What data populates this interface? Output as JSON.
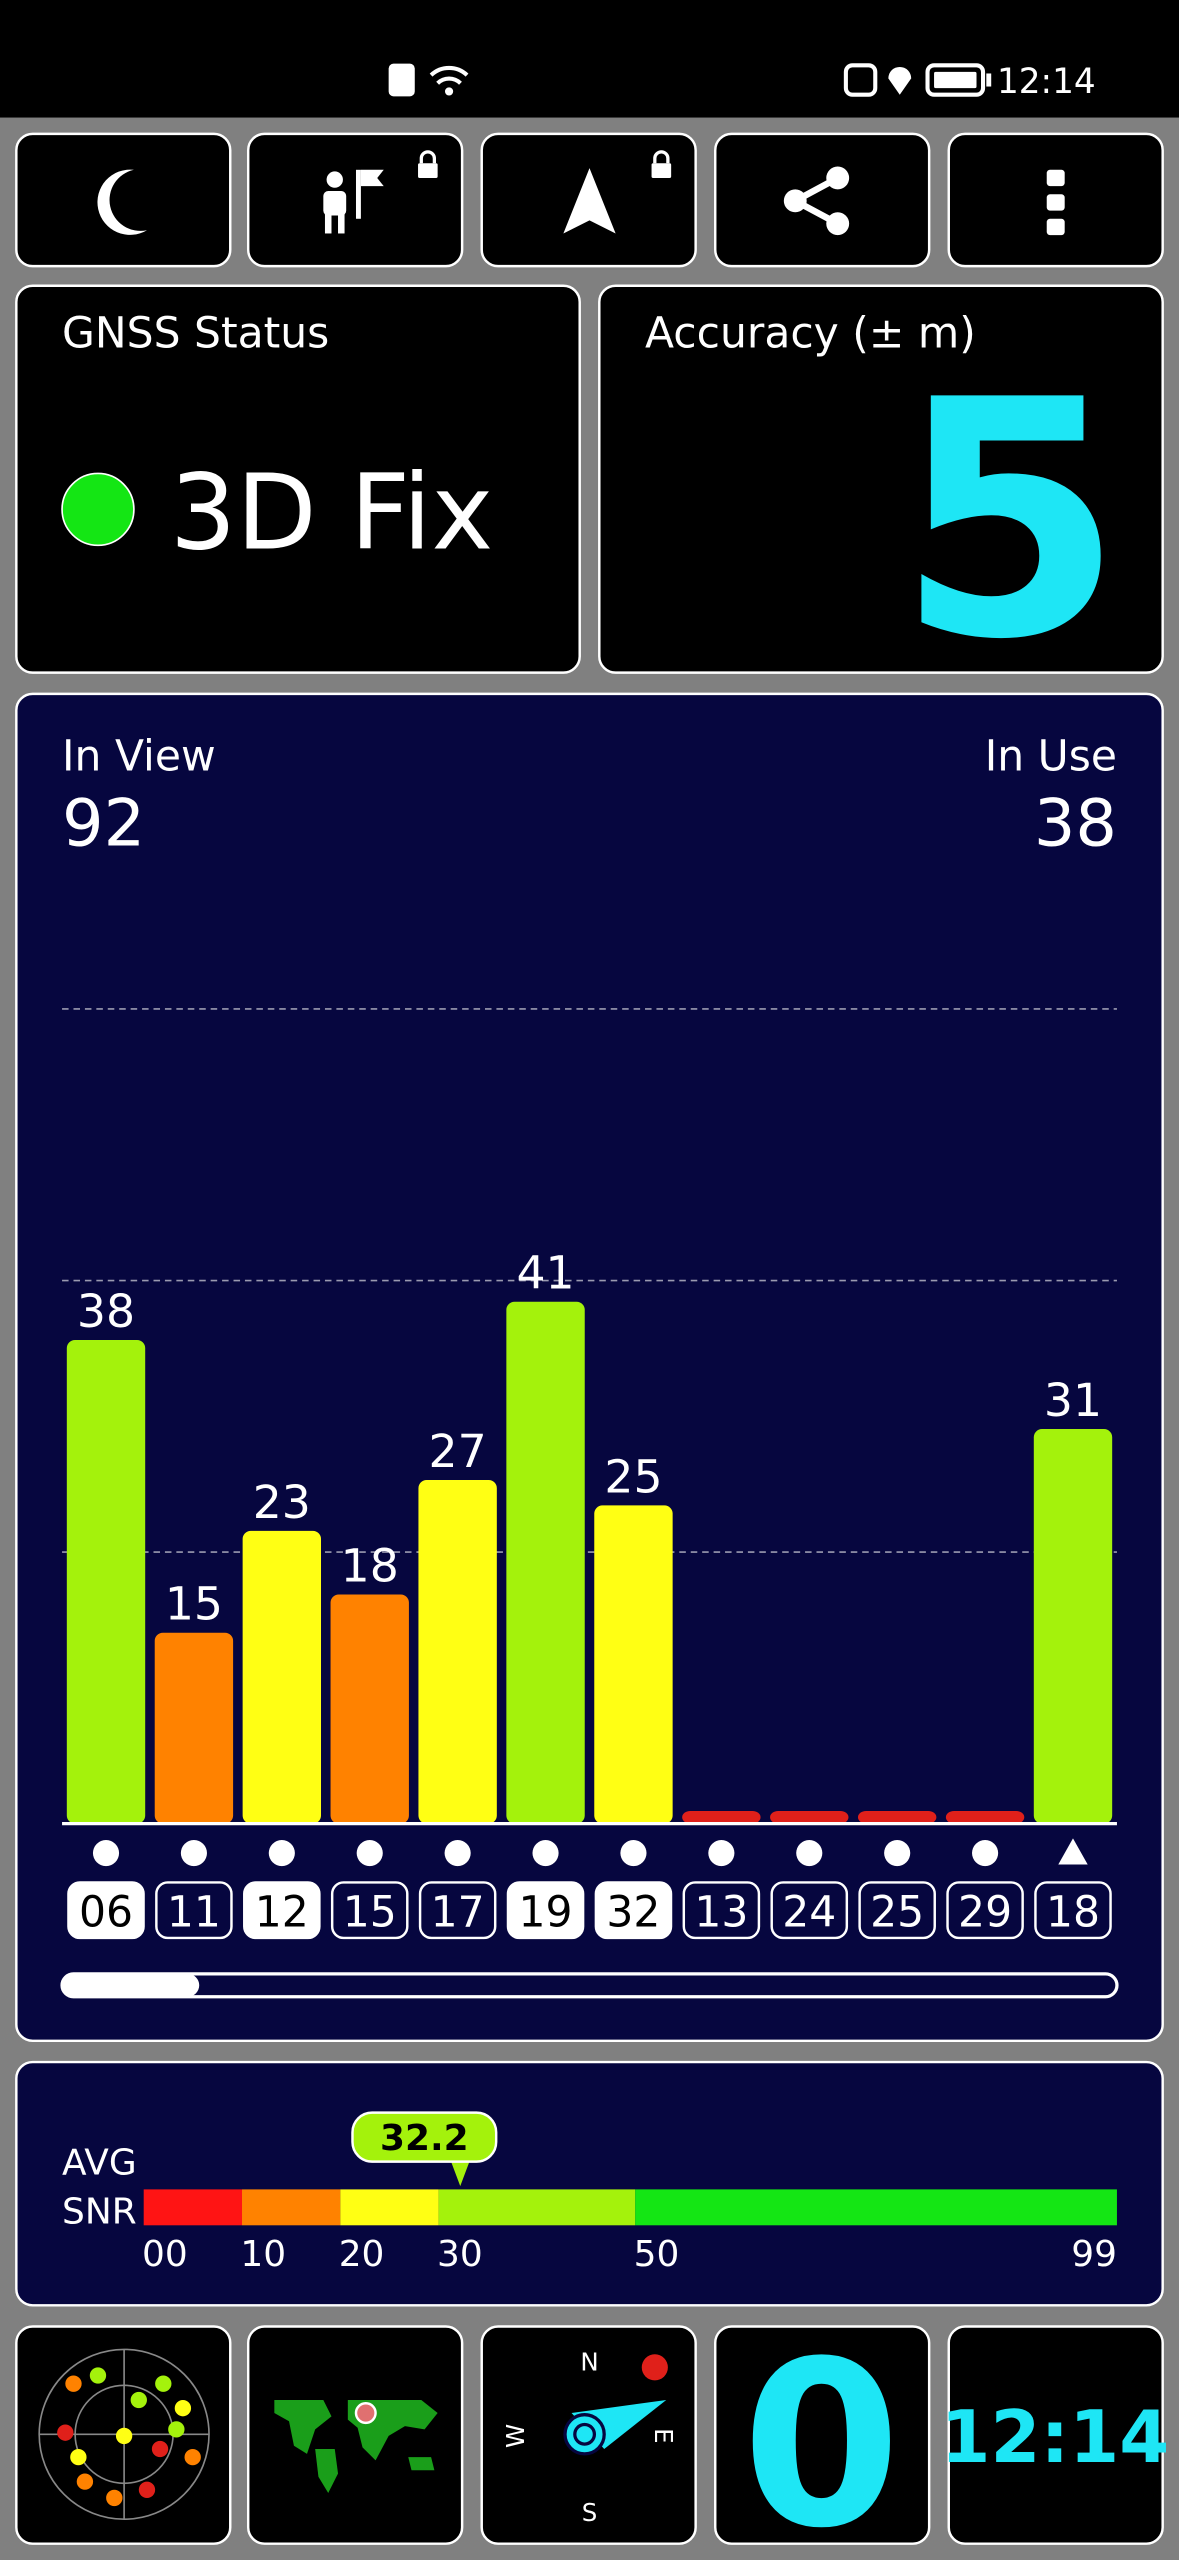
{
  "status_bar": {
    "time": "12:14"
  },
  "gnss_status": {
    "label": "GNSS Status",
    "value": "3D Fix",
    "color": "#14e614"
  },
  "accuracy": {
    "label": "Accuracy (± m)",
    "value": 5
  },
  "satellites": {
    "in_view_label": "In View",
    "in_view": 92,
    "in_use_label": "In Use",
    "in_use": 38,
    "ylim": [
      0,
      64
    ],
    "bars": [
      {
        "prn": "06",
        "snr": 38,
        "color": "#a4f20c",
        "used": true,
        "marker": "circle"
      },
      {
        "prn": "11",
        "snr": 15,
        "color": "#ff8200",
        "used": false,
        "marker": "circle"
      },
      {
        "prn": "12",
        "snr": 23,
        "color": "#ffff14",
        "used": true,
        "marker": "circle"
      },
      {
        "prn": "15",
        "snr": 18,
        "color": "#ff8200",
        "used": false,
        "marker": "circle"
      },
      {
        "prn": "17",
        "snr": 27,
        "color": "#ffff14",
        "used": false,
        "marker": "circle"
      },
      {
        "prn": "19",
        "snr": 41,
        "color": "#a4f20c",
        "used": true,
        "marker": "circle"
      },
      {
        "prn": "32",
        "snr": 25,
        "color": "#ffff14",
        "used": true,
        "marker": "circle"
      },
      {
        "prn": "13",
        "snr": 1,
        "color": "#e0201a",
        "used": false,
        "marker": "circle"
      },
      {
        "prn": "24",
        "snr": 1,
        "color": "#e0201a",
        "used": false,
        "marker": "circle"
      },
      {
        "prn": "25",
        "snr": 1,
        "color": "#e0201a",
        "used": false,
        "marker": "circle"
      },
      {
        "prn": "29",
        "snr": 1,
        "color": "#e0201a",
        "used": false,
        "marker": "circle"
      },
      {
        "prn": "18",
        "snr": 31,
        "color": "#a4f20c",
        "used": false,
        "marker": "triangle"
      }
    ]
  },
  "snr": {
    "label_top": "AVG",
    "label_bottom": "SNR",
    "average": 32.2,
    "marker_color": "#a4f20c",
    "ticks": [
      {
        "value": 0,
        "label": "00"
      },
      10,
      20,
      30,
      50,
      99
    ],
    "band_colors": [
      "#ff1414",
      "#ff8200",
      "#ffff14",
      "#a4f20c",
      "#14e614"
    ]
  },
  "tiles": {
    "compass": {
      "n": "N",
      "e": "E",
      "s": "S",
      "w": "W"
    },
    "speed": 0,
    "clock": "12:14"
  }
}
